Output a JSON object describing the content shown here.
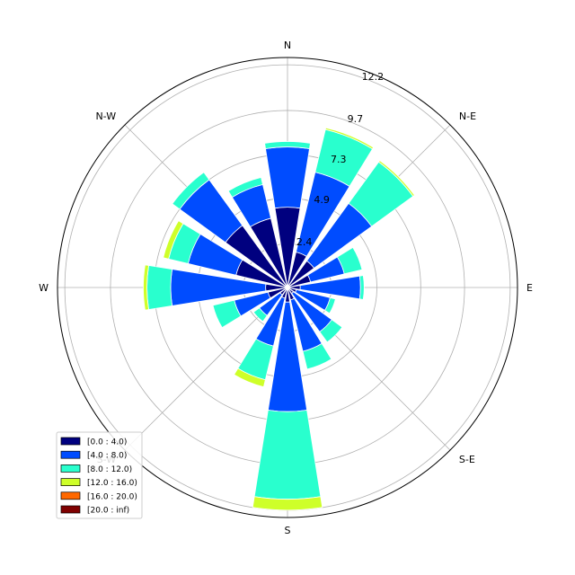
{
  "chart_data": {
    "type": "windrose",
    "directions": [
      "N",
      "NNE",
      "N-E",
      "ENE",
      "E",
      "ESE",
      "S-E",
      "SSE",
      "S",
      "SSW",
      "S-W",
      "WSW",
      "W",
      "WNW",
      "N-W",
      "NNW"
    ],
    "direction_labels": [
      "N",
      "N-E",
      "E",
      "S-E",
      "S",
      "S-W",
      "W",
      "N-W"
    ],
    "ring_labels": [
      "2.4",
      "4.9",
      "7.3",
      "9.7",
      "12.2"
    ],
    "r_max": 12.6,
    "legend": [
      "[0.0 : 4.0)",
      "[4.0 : 8.0)",
      "[8.0 : 12.0)",
      "[12.0 : 16.0)",
      "[16.0 : 20.0)",
      "[20.0 : inf)"
    ],
    "colors": [
      "#00007f",
      "#004cff",
      "#29ffce",
      "#ceff29",
      "#ff6800",
      "#7f0000"
    ],
    "cumulative": [
      [
        4.4,
        7.7,
        8.0,
        8.0,
        8.0,
        8.0
      ],
      [
        2.0,
        6.5,
        8.9,
        9.0,
        9.0,
        9.0
      ],
      [
        1.8,
        5.7,
        8.5,
        8.6,
        8.6,
        8.6
      ],
      [
        1.3,
        3.2,
        4.2,
        4.2,
        4.2,
        4.2
      ],
      [
        0.7,
        4.0,
        4.2,
        4.2,
        4.2,
        4.2
      ],
      [
        0.5,
        2.4,
        2.7,
        2.7,
        2.7,
        2.7
      ],
      [
        0.4,
        3.0,
        3.7,
        3.7,
        3.7,
        3.7
      ],
      [
        0.7,
        3.6,
        4.6,
        4.6,
        4.6,
        4.6
      ],
      [
        0.8,
        6.8,
        11.6,
        12.2,
        12.2,
        12.2
      ],
      [
        0.6,
        3.3,
        5.2,
        5.6,
        5.6,
        5.6
      ],
      [
        0.5,
        1.9,
        2.3,
        2.3,
        2.3,
        2.3
      ],
      [
        1.1,
        3.0,
        4.2,
        4.2,
        4.2,
        4.2
      ],
      [
        1.2,
        6.4,
        7.7,
        7.9,
        7.9,
        7.9
      ],
      [
        2.9,
        5.6,
        6.7,
        7.0,
        7.0,
        7.0
      ],
      [
        4.2,
        7.3,
        7.8,
        7.8,
        7.8,
        7.8
      ],
      [
        3.9,
        5.8,
        6.2,
        6.2,
        6.2,
        6.2
      ]
    ]
  }
}
